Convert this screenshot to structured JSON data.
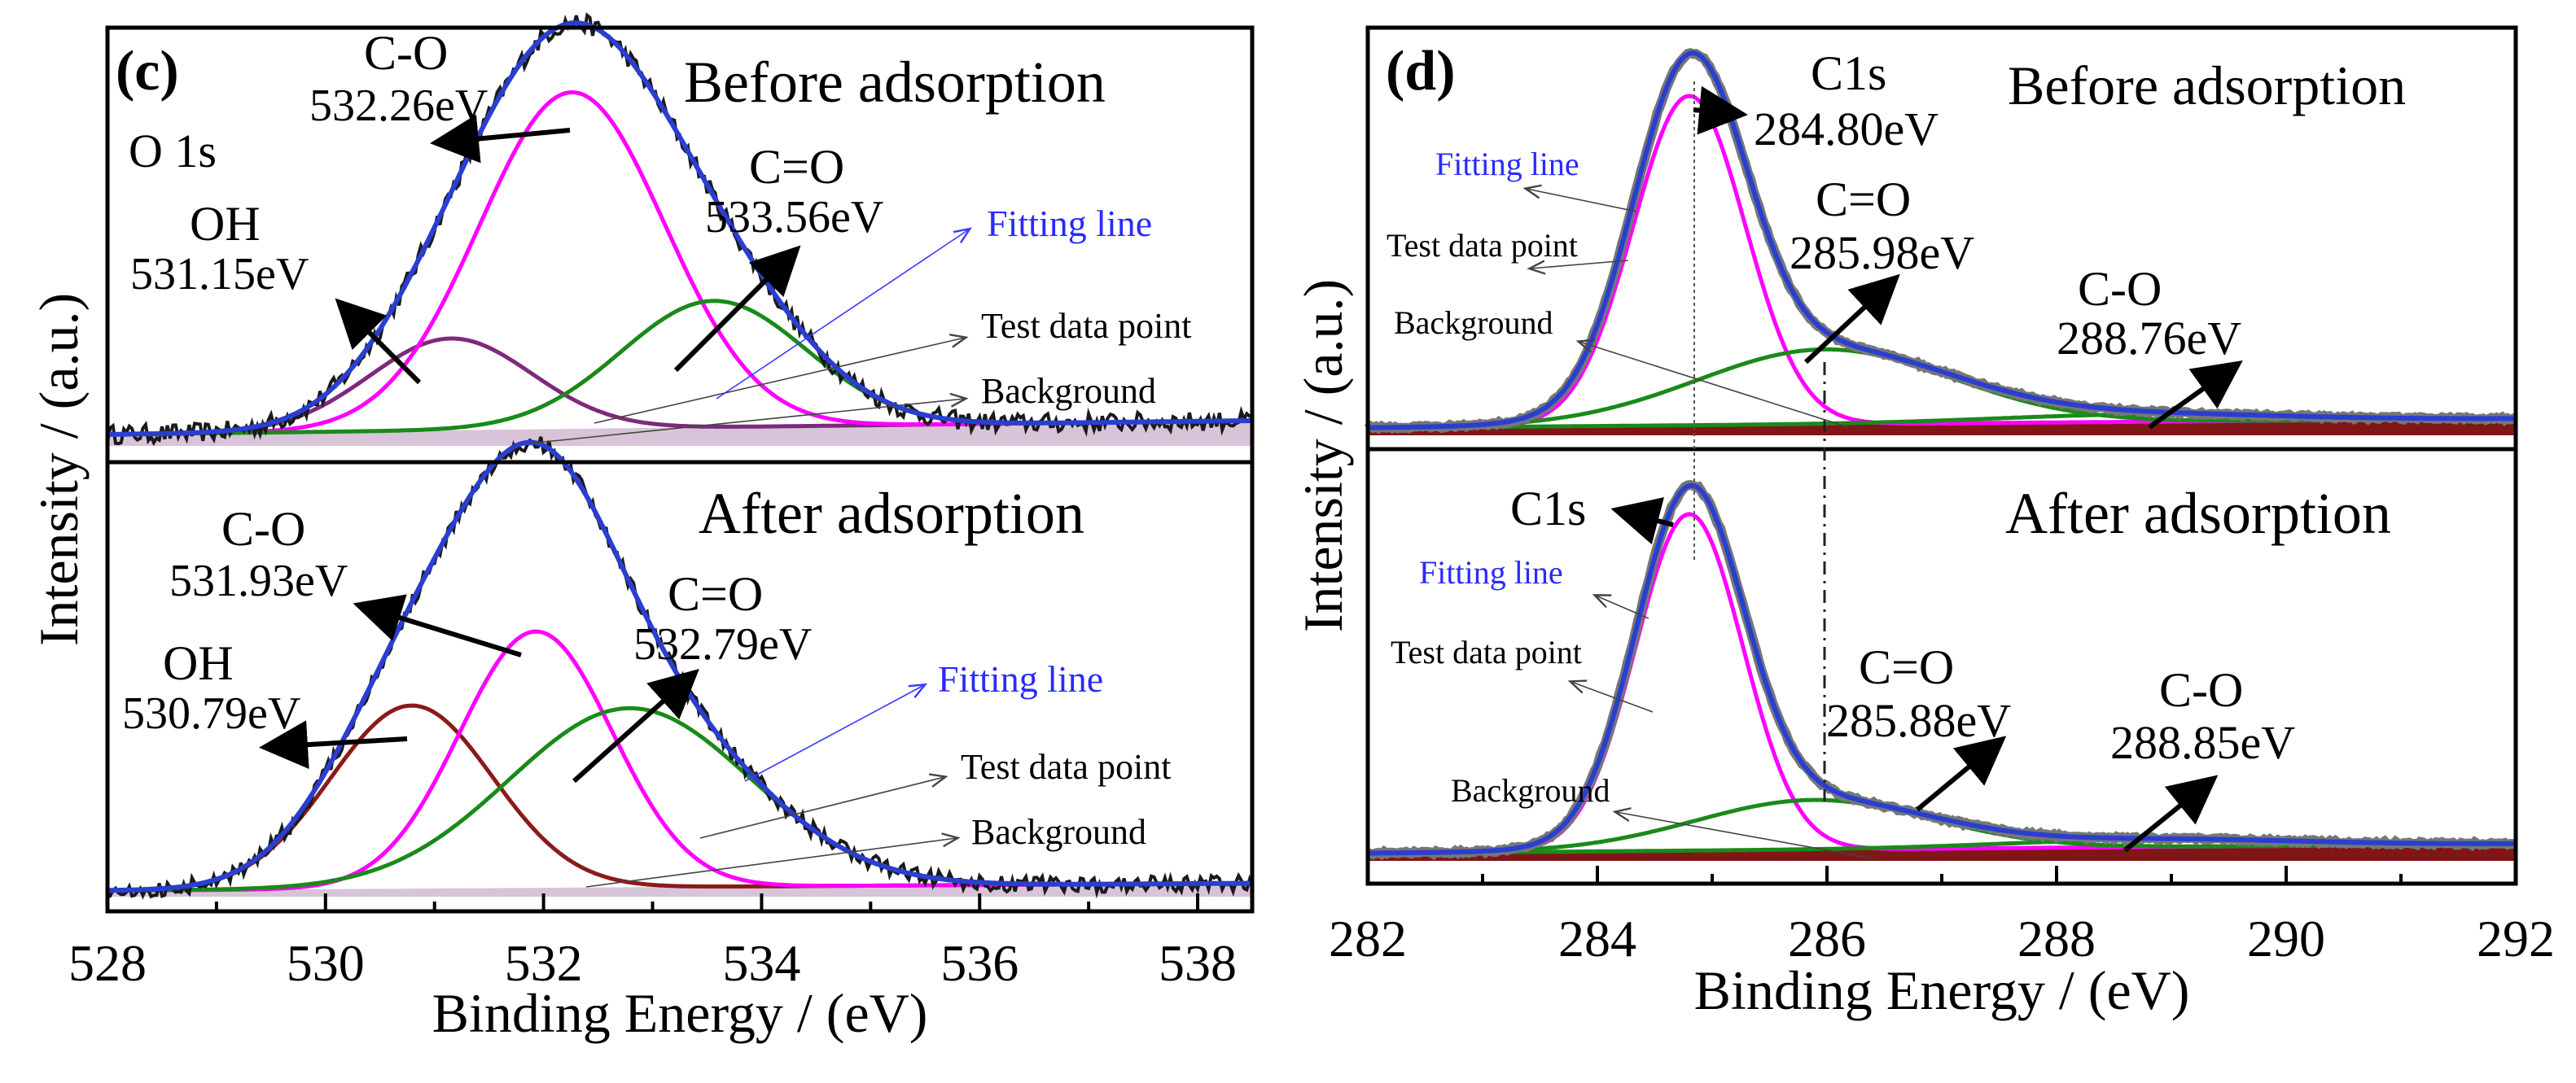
{
  "chart_data": [
    {
      "type": "line",
      "panel_label": "(c)",
      "element": "O 1s",
      "xlabel": "Binding Energy / (eV)",
      "ylabel": "Intensity / (a.u.)",
      "xlim": [
        528,
        538.5
      ],
      "x_ticks": [
        528,
        530,
        532,
        534,
        536,
        538
      ],
      "subplots": [
        {
          "title": "Before adsorption",
          "background_base": 0.03,
          "noise_amplitude": 0.025,
          "peaks": [
            {
              "name": "OH",
              "position": 531.15,
              "height": 0.24,
              "fwhm": 1.75,
              "color": "#7d2a7d"
            },
            {
              "name": "C-O",
              "position": 532.26,
              "height": 0.88,
              "fwhm": 2.0,
              "color": "#ff00ff"
            },
            {
              "name": "C=O",
              "position": 533.56,
              "height": 0.33,
              "fwhm": 2.0,
              "color": "#1a8a1a"
            }
          ],
          "annotations": [
            {
              "label": "C-O",
              "energy": "532.26eV"
            },
            {
              "label": "OH",
              "energy": "531.15eV"
            },
            {
              "label": "C=O",
              "energy": "533.56eV"
            }
          ],
          "legend": [
            "Fitting line",
            "Test data point",
            "Background"
          ]
        },
        {
          "title": "After  adsorption",
          "background_base": 0.015,
          "noise_amplitude": 0.02,
          "peaks": [
            {
              "name": "OH",
              "position": 530.79,
              "height": 0.45,
              "fwhm": 1.75,
              "color": "#8b1a1a"
            },
            {
              "name": "C-O",
              "position": 531.93,
              "height": 0.63,
              "fwhm": 1.65,
              "color": "#ff00ff"
            },
            {
              "name": "C=O",
              "position": 532.79,
              "height": 0.44,
              "fwhm": 2.6,
              "color": "#1a8a1a"
            }
          ],
          "annotations": [
            {
              "label": "C-O",
              "energy": "531.93eV"
            },
            {
              "label": "OH",
              "energy": "530.79eV"
            },
            {
              "label": "C=O",
              "energy": "532.79eV"
            }
          ],
          "legend": [
            "Fitting line",
            "Test data point",
            "Background"
          ]
        }
      ]
    },
    {
      "type": "line",
      "panel_label": "(d)",
      "element": "C1s",
      "xlabel": "Binding Energy / (eV)",
      "ylabel": "Intensity / (a.u.)",
      "xlim": [
        282,
        292
      ],
      "x_ticks": [
        282,
        284,
        286,
        288,
        290,
        292
      ],
      "subplots": [
        {
          "title": "Before adsorption",
          "background_base": 0.02,
          "noise_amplitude": 0.004,
          "peaks": [
            {
              "name": "C1s",
              "position": 284.8,
              "height": 0.88,
              "fwhm": 1.15,
              "color": "#ff00ff"
            },
            {
              "name": "C=O",
              "position": 285.98,
              "height": 0.2,
              "fwhm": 2.6,
              "color": "#1a8a1a"
            },
            {
              "name": "C-O",
              "position": 288.76,
              "height": 0.02,
              "fwhm": 3.0,
              "color": "#1a8a1a"
            }
          ],
          "annotations": [
            {
              "label": "C1s",
              "energy": "284.80eV"
            },
            {
              "label": "C=O",
              "energy": "285.98eV"
            },
            {
              "label": "C-O",
              "energy": "288.76eV"
            }
          ],
          "legend": [
            "Fitting line",
            "Test data point",
            "Background"
          ]
        },
        {
          "title": "After adsorption",
          "background_base": 0.02,
          "noise_amplitude": 0.004,
          "peaks": [
            {
              "name": "C1s",
              "position": 284.8,
              "height": 0.88,
              "fwhm": 1.1,
              "color": "#ff00ff"
            },
            {
              "name": "C=O",
              "position": 285.88,
              "height": 0.13,
              "fwhm": 2.4,
              "color": "#1a8a1a"
            },
            {
              "name": "C-O",
              "position": 288.85,
              "height": 0.02,
              "fwhm": 3.0,
              "color": "#1a8a1a"
            }
          ],
          "annotations": [
            {
              "label": "C1s",
              "energy": ""
            },
            {
              "label": "C=O",
              "energy": "285.88eV"
            },
            {
              "label": "C-O",
              "energy": "288.85eV"
            }
          ],
          "legend": [
            "Fitting line",
            "Test data point",
            "Background"
          ]
        }
      ]
    }
  ],
  "colors": {
    "fit": "#2a3fd0",
    "data": "#1a1a1a",
    "background_fill": "#7a0a0a",
    "background_line": "#b28ab2",
    "legend_blue": "#2a2aff"
  }
}
